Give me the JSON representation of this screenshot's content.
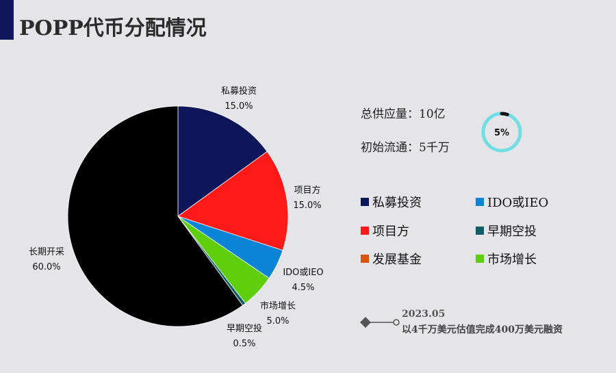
{
  "title": "POPP代币分配情况",
  "accent_color": "#0f1659",
  "stats": {
    "total_supply": "总供应量：10亿",
    "initial_circulation": "初始流通：5千万",
    "ring_label": "5%",
    "ring_fraction": 0.05,
    "ring_color": "#73dde4",
    "ring_fill_color": "#111111"
  },
  "chart_data": {
    "type": "pie",
    "title": "",
    "slices": [
      {
        "name": "私募投资",
        "value": 15.0,
        "label": "15.0%",
        "color": "#0d1658"
      },
      {
        "name": "项目方",
        "value": 15.0,
        "label": "15.0%",
        "color": "#ff1a1a"
      },
      {
        "name": "IDO或IEO",
        "value": 4.5,
        "label": "4.5%",
        "color": "#0a84d4"
      },
      {
        "name": "市场增长",
        "value": 5.0,
        "label": "5.0%",
        "color": "#5fcf0d"
      },
      {
        "name": "早期空投",
        "value": 0.5,
        "label": "0.5%",
        "color": "#0e5e66"
      },
      {
        "name": "长期开采",
        "value": 60.0,
        "label": "60.0%",
        "color": "#000000"
      }
    ],
    "legend": [
      {
        "name": "私募投资",
        "color": "#0d1658"
      },
      {
        "name": "IDO或IEO",
        "color": "#0a84d4"
      },
      {
        "name": "项目方",
        "color": "#ff1a1a"
      },
      {
        "name": "早期空投",
        "color": "#0e5e66"
      },
      {
        "name": "发展基金",
        "color": "#d9530f"
      },
      {
        "name": "市场增长",
        "color": "#5fcf0d"
      }
    ]
  },
  "timeline": {
    "date": "2023.05",
    "text": "以4千万美元估值完成400万美元融资"
  }
}
